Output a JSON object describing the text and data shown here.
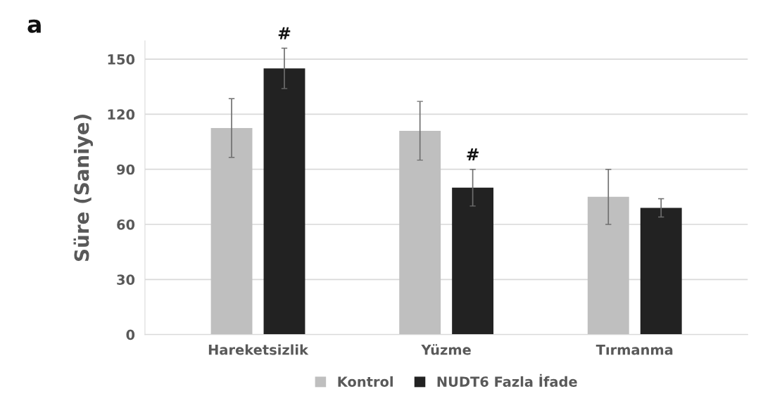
{
  "chart_data": {
    "type": "bar",
    "ylabel": "Süre (Saniye)",
    "annotations": [
      "a"
    ],
    "categories": [
      "Hareketsizlik",
      "Yüzme",
      "Tırmanma"
    ],
    "series": [
      {
        "name": "Kontrol",
        "color": "#bfbfbf",
        "values": [
          112.5,
          111,
          75
        ],
        "errors": [
          16,
          16,
          15
        ]
      },
      {
        "name": "NUDT6 Fazla İfade",
        "color": "#222222",
        "values": [
          145,
          80,
          69
        ],
        "errors": [
          11,
          10,
          5
        ],
        "value_labels": [
          "#",
          "#",
          null
        ]
      }
    ],
    "ylim": [
      0,
      160
    ],
    "yticks": [
      0,
      30,
      60,
      90,
      120,
      150
    ],
    "grid": "y",
    "legend": "bottom"
  }
}
